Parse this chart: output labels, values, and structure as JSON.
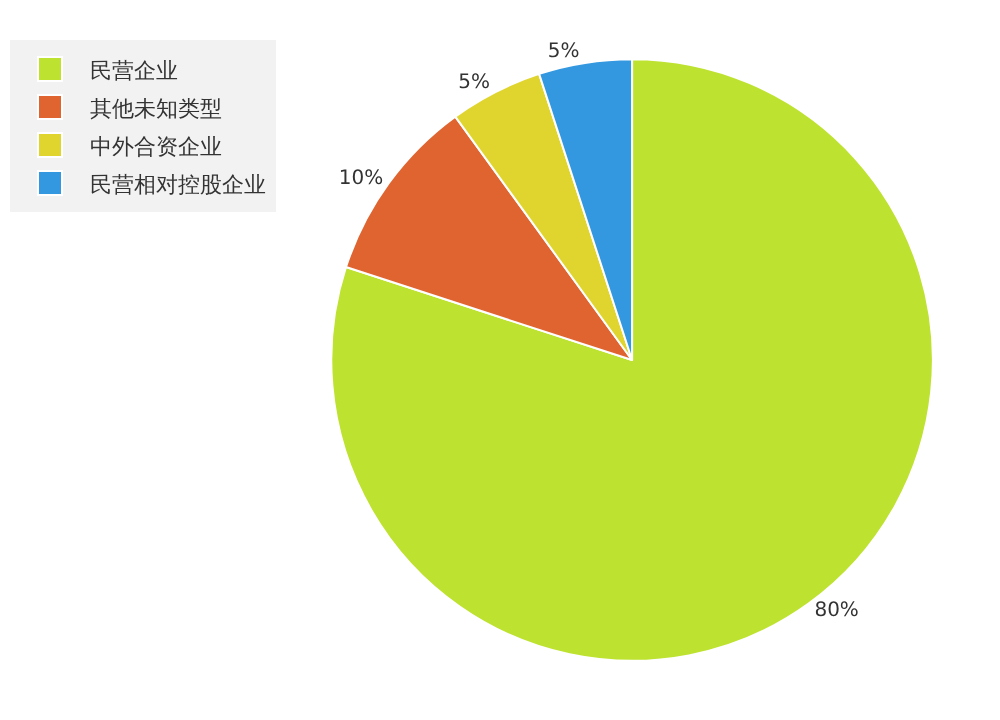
{
  "chart_data": {
    "type": "pie",
    "categories": [
      "民营企业",
      "其他未知类型",
      "中外合资企业",
      "民营相对控股企业"
    ],
    "values": [
      80,
      10,
      5,
      5
    ],
    "colors": [
      "#bde22f",
      "#e06430",
      "#e0d52e",
      "#3398e0"
    ],
    "value_labels": [
      "80%",
      "10%",
      "5%",
      "5%"
    ],
    "legend": "top left"
  }
}
